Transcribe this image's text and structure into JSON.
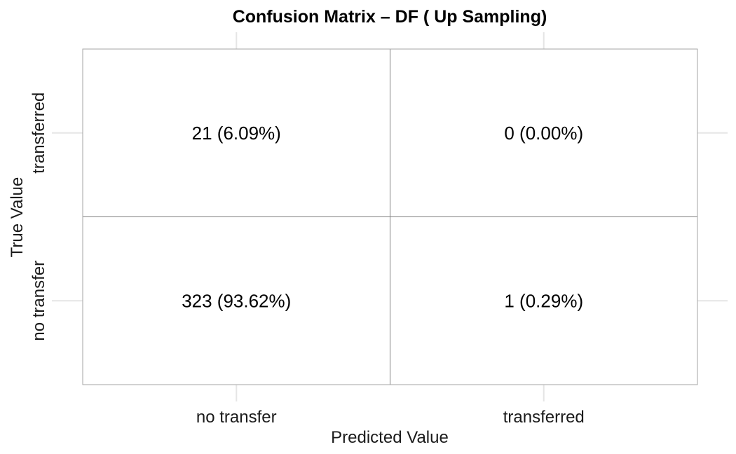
{
  "chart_data": {
    "type": "table",
    "title": "Confusion Matrix – DF ( Up Sampling)",
    "xlabel": "Predicted Value",
    "ylabel": "True Value",
    "x_categories": [
      "no transfer",
      "transferred"
    ],
    "y_categories": [
      "transferred",
      "no transfer"
    ],
    "cells": [
      {
        "true": "transferred",
        "predicted": "no transfer",
        "count": 21,
        "percent": 6.09,
        "label": "21 (6.09%)"
      },
      {
        "true": "transferred",
        "predicted": "transferred",
        "count": 0,
        "percent": 0.0,
        "label": "0 (0.00%)"
      },
      {
        "true": "no transfer",
        "predicted": "no transfer",
        "count": 323,
        "percent": 93.62,
        "label": "323 (93.62%)"
      },
      {
        "true": "no transfer",
        "predicted": "transferred",
        "count": 1,
        "percent": 0.29,
        "label": "1 (0.29%)"
      }
    ],
    "grid": true,
    "colors": {
      "grid": "#e5e5e5",
      "cell_border": "#7f7f7f",
      "panel_border": "#a6a6a6",
      "text": "#000000"
    }
  }
}
